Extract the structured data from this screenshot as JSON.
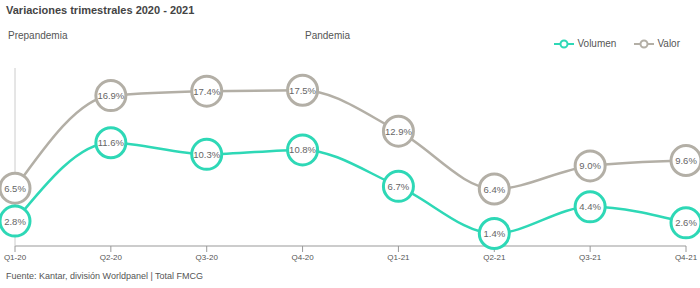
{
  "chart_data": {
    "type": "line",
    "title": "Variaciones trimestrales 2020 - 2021",
    "annotations": [
      "Prepandemia",
      "Pandemia"
    ],
    "source": "Fuente: Kantar, división Worldpanel | Total FMCG",
    "categories": [
      "Q1-20",
      "Q2-20",
      "Q3-20",
      "Q4-20",
      "Q1-21",
      "Q2-21",
      "Q3-21",
      "Q4-21"
    ],
    "series": [
      {
        "name": "Volumen",
        "color": "#2ed8b6",
        "marker": "circle",
        "values": [
          2.8,
          11.6,
          10.3,
          10.8,
          6.7,
          1.4,
          4.4,
          2.6
        ],
        "value_labels": [
          "2.8%",
          "11.6%",
          "10.3%",
          "10.8%",
          "6.7%",
          "1.4%",
          "4.4%",
          "2.6%"
        ]
      },
      {
        "name": "Valor",
        "color": "#b3afa6",
        "marker": "circle",
        "values": [
          6.5,
          16.9,
          17.4,
          17.5,
          12.9,
          6.4,
          9.0,
          9.6
        ],
        "value_labels": [
          "6.5%",
          "16.9%",
          "17.4%",
          "17.5%",
          "12.9%",
          "6.4%",
          "9.0%",
          "9.6%"
        ]
      }
    ],
    "ylim": [
      0,
      20
    ],
    "tick_labels": "x",
    "grid": false,
    "legend": "top-right",
    "data_labels": true
  }
}
